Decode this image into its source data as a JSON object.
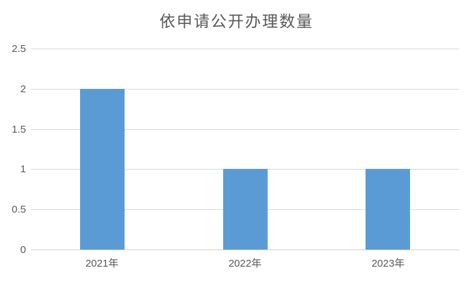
{
  "chart_data": {
    "type": "bar",
    "title": "依申请公开办理数量",
    "categories": [
      "2021年",
      "2022年",
      "2023年"
    ],
    "values": [
      2,
      1,
      1
    ],
    "xlabel": "",
    "ylabel": "",
    "ylim": [
      0,
      2.5
    ],
    "yticks": [
      0,
      0.5,
      1,
      1.5,
      2,
      2.5
    ],
    "ytick_labels": [
      "0",
      "0.5",
      "1",
      "1.5",
      "2",
      "2.5"
    ],
    "grid": true,
    "legend_position": "none",
    "bar_color": "#5b9bd5",
    "gridline_color": "#d9d9d9",
    "axis_line_color": "#cfcfcf",
    "text_color": "#595959",
    "background_color": "#ffffff"
  }
}
